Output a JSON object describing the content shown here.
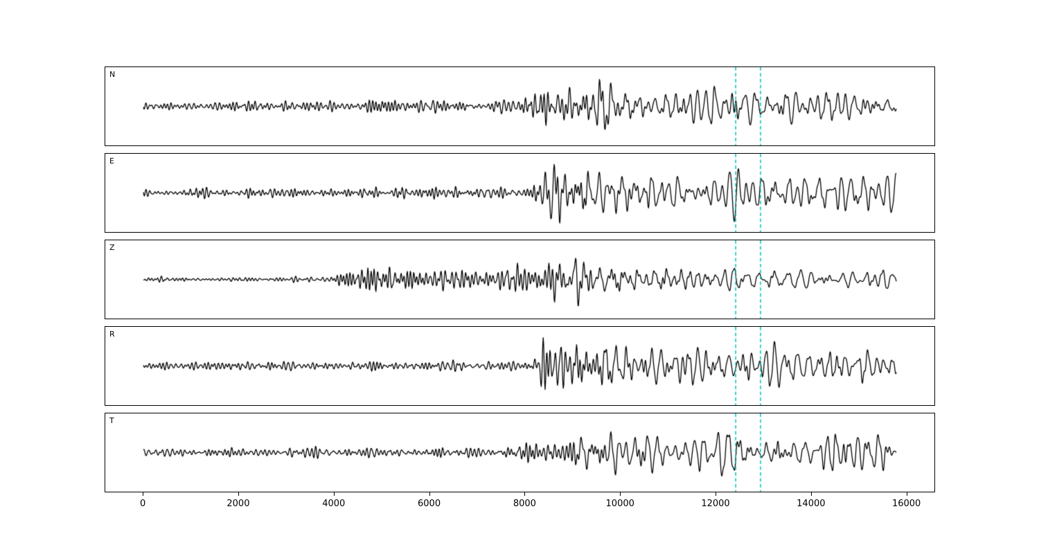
{
  "figure": {
    "background": "#ffffff",
    "trace_color": "#000000",
    "marker_color": "#00bfbf"
  },
  "chart_data": {
    "type": "line",
    "title": "",
    "xlabel": "",
    "ylabel": "",
    "grid": false,
    "legend": null,
    "xlim": [
      -800,
      16600
    ],
    "x_start": 0,
    "x_end": 15800,
    "x_ticks": [
      0,
      2000,
      4000,
      6000,
      8000,
      10000,
      12000,
      14000,
      16000
    ],
    "x_tick_labels": [
      "0",
      "2000",
      "4000",
      "6000",
      "8000",
      "10000",
      "12000",
      "14000",
      "16000"
    ],
    "marker_lines_x": [
      12430,
      12950
    ],
    "marker_style": "dashed",
    "freq_bands": {
      "high": [
        0.0072,
        0.016
      ],
      "low": [
        0.0031,
        0.0068
      ]
    },
    "panels": [
      {
        "label": "N",
        "seed": 11,
        "envelope": [
          [
            0,
            0.12
          ],
          [
            3000,
            0.13
          ],
          [
            4300,
            0.14
          ],
          [
            4800,
            0.24
          ],
          [
            5400,
            0.16
          ],
          [
            7000,
            0.18
          ],
          [
            8000,
            0.3
          ],
          [
            8600,
            0.55
          ],
          [
            9300,
            0.55
          ],
          [
            9650,
            0.95
          ],
          [
            9900,
            0.5
          ],
          [
            10500,
            0.6
          ],
          [
            11500,
            0.55
          ],
          [
            12100,
            0.78
          ],
          [
            12800,
            0.5
          ],
          [
            13700,
            0.55
          ],
          [
            14600,
            0.6
          ],
          [
            15400,
            0.42
          ],
          [
            15800,
            0.3
          ]
        ]
      },
      {
        "label": "E",
        "seed": 22,
        "envelope": [
          [
            0,
            0.12
          ],
          [
            4000,
            0.13
          ],
          [
            6000,
            0.15
          ],
          [
            7500,
            0.15
          ],
          [
            8150,
            0.16
          ],
          [
            8300,
            0.78
          ],
          [
            8700,
            0.85
          ],
          [
            9100,
            0.95
          ],
          [
            9500,
            0.7
          ],
          [
            10200,
            0.6
          ],
          [
            11000,
            0.65
          ],
          [
            11800,
            0.55
          ],
          [
            12500,
            0.62
          ],
          [
            13200,
            0.55
          ],
          [
            14000,
            0.6
          ],
          [
            15000,
            0.55
          ],
          [
            15800,
            0.45
          ]
        ]
      },
      {
        "label": "Z",
        "seed": 33,
        "envelope": [
          [
            0,
            0.06
          ],
          [
            2000,
            0.05
          ],
          [
            3800,
            0.06
          ],
          [
            4300,
            0.26
          ],
          [
            5200,
            0.3
          ],
          [
            6000,
            0.25
          ],
          [
            7000,
            0.25
          ],
          [
            7600,
            0.35
          ],
          [
            8200,
            0.4
          ],
          [
            8350,
            0.85
          ],
          [
            8700,
            0.7
          ],
          [
            9000,
            0.92
          ],
          [
            9300,
            0.5
          ],
          [
            10000,
            0.46
          ],
          [
            11000,
            0.4
          ],
          [
            12000,
            0.36
          ],
          [
            13000,
            0.32
          ],
          [
            14000,
            0.3
          ],
          [
            15000,
            0.28
          ],
          [
            15800,
            0.36
          ]
        ]
      },
      {
        "label": "R",
        "seed": 44,
        "envelope": [
          [
            0,
            0.1
          ],
          [
            4000,
            0.12
          ],
          [
            6000,
            0.13
          ],
          [
            7800,
            0.15
          ],
          [
            8150,
            0.2
          ],
          [
            8300,
            0.85
          ],
          [
            8800,
            0.8
          ],
          [
            9200,
            0.92
          ],
          [
            9700,
            0.75
          ],
          [
            10400,
            0.7
          ],
          [
            11200,
            0.65
          ],
          [
            12000,
            0.6
          ],
          [
            12800,
            0.55
          ],
          [
            13600,
            0.6
          ],
          [
            14500,
            0.55
          ],
          [
            15800,
            0.45
          ]
        ]
      },
      {
        "label": "T",
        "seed": 55,
        "envelope": [
          [
            0,
            0.1
          ],
          [
            3000,
            0.12
          ],
          [
            5000,
            0.14
          ],
          [
            6500,
            0.15
          ],
          [
            7700,
            0.2
          ],
          [
            8300,
            0.45
          ],
          [
            9000,
            0.5
          ],
          [
            9600,
            0.78
          ],
          [
            10300,
            0.55
          ],
          [
            11000,
            0.6
          ],
          [
            11800,
            0.62
          ],
          [
            12200,
            0.88
          ],
          [
            12800,
            0.6
          ],
          [
            13500,
            0.65
          ],
          [
            14300,
            0.7
          ],
          [
            15000,
            0.6
          ],
          [
            15800,
            0.35
          ]
        ]
      }
    ]
  }
}
